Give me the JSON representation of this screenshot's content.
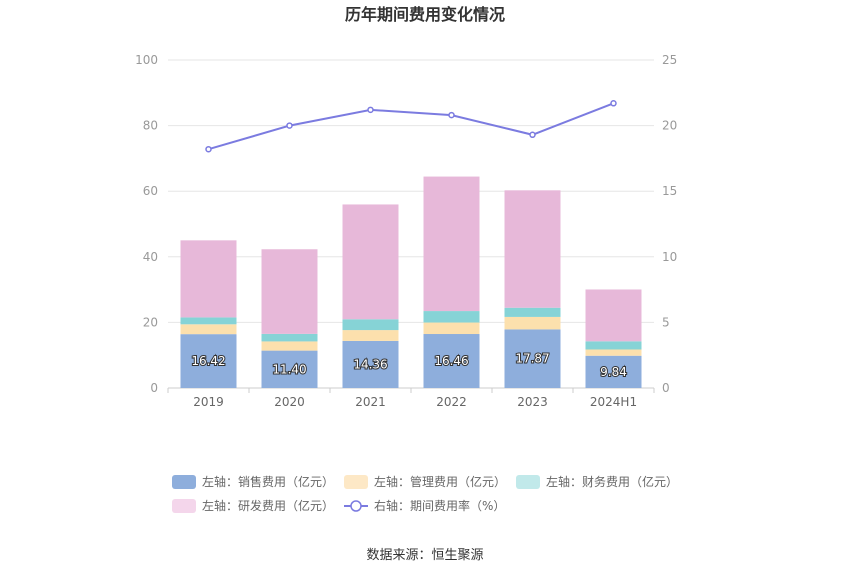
{
  "chart_data": {
    "type": "bar",
    "title": "历年期间费用变化情况",
    "categories": [
      "2019",
      "2020",
      "2021",
      "2022",
      "2023",
      "2024H1"
    ],
    "stacked": true,
    "ylim": [
      0,
      100
    ],
    "yticks": [
      0,
      20,
      40,
      60,
      80,
      100
    ],
    "y2lim": [
      0,
      25
    ],
    "y2ticks": [
      0,
      5,
      10,
      15,
      20,
      25
    ],
    "grid": true,
    "legend_position": "bottom",
    "series": [
      {
        "name": "左轴：销售费用（亿元）",
        "axis": "left",
        "type": "bar",
        "color": "#8eaedc",
        "values": [
          16.42,
          11.4,
          14.36,
          16.46,
          17.87,
          9.84
        ],
        "labels": [
          "16.42",
          "11.40",
          "14.36",
          "16.46",
          "17.87",
          "9.84"
        ]
      },
      {
        "name": "左轴：管理费用（亿元）",
        "axis": "left",
        "type": "bar",
        "color": "#fce0ad",
        "values": [
          3.0,
          2.8,
          3.3,
          3.5,
          3.8,
          1.9
        ]
      },
      {
        "name": "左轴：财务费用（亿元）",
        "axis": "left",
        "type": "bar",
        "color": "#86d3d6",
        "values": [
          2.1,
          2.3,
          3.3,
          3.5,
          2.8,
          2.5
        ]
      },
      {
        "name": "左轴：研发费用（亿元）",
        "axis": "left",
        "type": "bar",
        "color": "#e7b8d9",
        "values": [
          23.5,
          25.8,
          35.0,
          41.0,
          35.8,
          15.8
        ]
      },
      {
        "name": "右轴：期间费用率（%）",
        "axis": "right",
        "type": "line",
        "color": "#7b7be0",
        "values": [
          18.2,
          20.0,
          21.2,
          20.8,
          19.3,
          21.7
        ]
      }
    ],
    "legend_colors": [
      "#8eaedc",
      "#fde8c6",
      "#c1e9ea",
      "#f4d6eb",
      "#7b7be0"
    ]
  },
  "source": "数据来源：恒生聚源"
}
